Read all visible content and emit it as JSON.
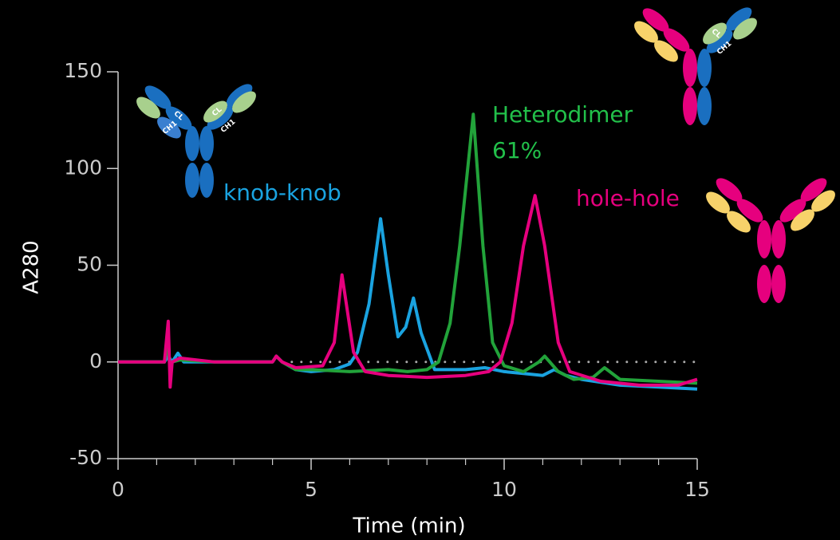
{
  "chart_data": {
    "type": "line",
    "x_label": "Time (min)",
    "y_label": "A280",
    "xlim": [
      0,
      15
    ],
    "ylim": [
      -50,
      150
    ],
    "xticks": [
      0,
      5,
      10,
      15
    ],
    "xminorticks": [
      1,
      2,
      3,
      4,
      6,
      7,
      8,
      9,
      11,
      12,
      13,
      14
    ],
    "yticks": [
      -50,
      0,
      50,
      100,
      150
    ],
    "reference_line": {
      "y": 0,
      "x": [
        4.5,
        15
      ],
      "style": "dotted",
      "color": "#aaaaaa"
    },
    "annotation": "61%",
    "icon_labels": [
      "CL",
      "CH1"
    ],
    "series": [
      {
        "name": "knob-knob",
        "color": "#1aa3e0",
        "x": [
          0,
          1.2,
          1.3,
          1.4,
          1.55,
          1.7,
          2.5,
          4.0,
          4.1,
          4.25,
          4.6,
          5.0,
          5.6,
          6.0,
          6.2,
          6.5,
          6.8,
          7.0,
          7.25,
          7.45,
          7.65,
          7.85,
          8.2,
          9.0,
          9.5,
          10.0,
          10.5,
          11.0,
          11.3,
          11.6,
          12.0,
          13.0,
          14.0,
          15.0
        ],
        "values": [
          0,
          0,
          3,
          0,
          4.5,
          0,
          0,
          0,
          3,
          0,
          -4,
          -5,
          -4,
          -1,
          5,
          30,
          74,
          45,
          13,
          18,
          33,
          15,
          -4,
          -4,
          -3,
          -5,
          -6,
          -7,
          -4,
          -7,
          -9,
          -12,
          -13,
          -14
        ]
      },
      {
        "name": "Heterodimer",
        "color": "#22a33a",
        "x": [
          0,
          1.2,
          1.3,
          1.35,
          1.4,
          1.6,
          2.5,
          4.0,
          4.1,
          4.25,
          4.6,
          5.0,
          6.0,
          7.0,
          7.5,
          8.0,
          8.3,
          8.6,
          8.85,
          9.2,
          9.45,
          9.7,
          10.0,
          10.5,
          10.9,
          11.05,
          11.4,
          11.8,
          12.3,
          12.6,
          13.0,
          14.0,
          15.0
        ],
        "values": [
          0,
          0,
          10,
          -5,
          0,
          1,
          0,
          0,
          3,
          0,
          -4,
          -4,
          -5,
          -4,
          -5,
          -4,
          0,
          20,
          60,
          128,
          60,
          10,
          -2,
          -5,
          0,
          3,
          -5,
          -9,
          -8,
          -3,
          -9,
          -10,
          -11
        ]
      },
      {
        "name": "hole-hole",
        "color": "#e6007e",
        "x": [
          0,
          1.2,
          1.3,
          1.35,
          1.4,
          1.6,
          2.5,
          4.0,
          4.1,
          4.25,
          4.6,
          5.3,
          5.6,
          5.8,
          6.1,
          6.4,
          7.0,
          8.0,
          9.0,
          9.6,
          9.9,
          10.2,
          10.5,
          10.8,
          11.05,
          11.4,
          11.7,
          12.5,
          13.5,
          14.5,
          15.0
        ],
        "values": [
          0,
          0,
          21,
          -13,
          0,
          2,
          0,
          0,
          3,
          0,
          -3,
          -2,
          10,
          45,
          5,
          -5,
          -7,
          -8,
          -7,
          -5,
          0,
          20,
          60,
          86,
          60,
          10,
          -5,
          -10,
          -12,
          -12,
          -9
        ]
      }
    ]
  }
}
